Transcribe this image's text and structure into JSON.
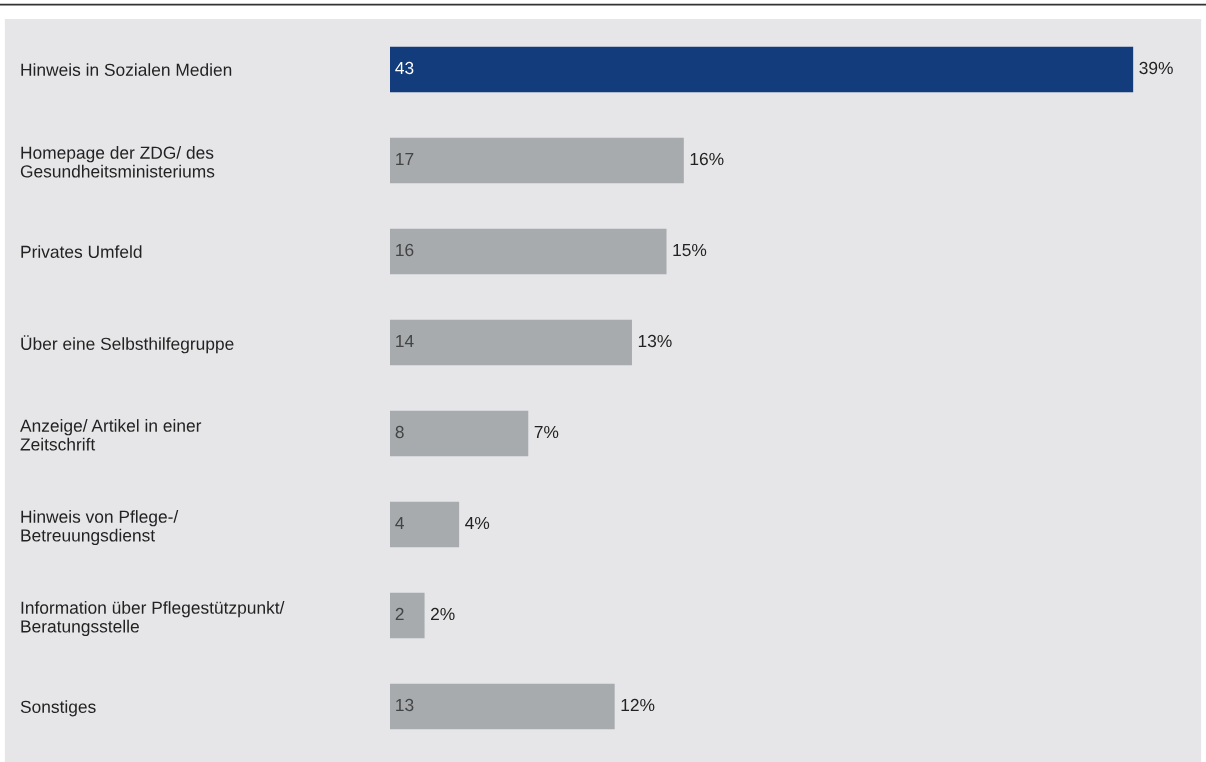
{
  "chart_data": {
    "type": "bar",
    "orientation": "horizontal",
    "categories": [
      "Hinweis in Sozialen Medien",
      "Homepage der ZDG/ des\nGesundheitsministeriums",
      "Privates Umfeld",
      "Über eine Selbsthilfegruppe",
      "Anzeige/ Artikel in einer\nZeitschrift",
      "Hinweis von Pflege-/\nBetreuungsdienst",
      "Information über Pflegestützpunkt/\nBeratungsstelle",
      "Sonstiges"
    ],
    "values": [
      43,
      17,
      16,
      14,
      8,
      4,
      2,
      13
    ],
    "colors": [
      "#133c7d",
      "#a7abae",
      "#a7abae",
      "#a7abae",
      "#a7abae",
      "#a7abae",
      "#a7abae",
      "#a7abae"
    ],
    "data_labels": true,
    "annotations": [
      {
        "text": "39%",
        "x": 43,
        "y": "Hinweis in Sozialen Medien"
      },
      {
        "text": "16%",
        "x": 17,
        "y": "Homepage der ZDG/ des\nGesundheitsministeriums"
      },
      {
        "text": "15%",
        "x": 16,
        "y": "Privates Umfeld"
      },
      {
        "text": "13%",
        "x": 14,
        "y": "Über eine Selbsthilfegruppe"
      },
      {
        "text": "7%",
        "x": 8,
        "y": "Anzeige/ Artikel in einer\nZeitschrift"
      },
      {
        "text": "4%",
        "x": 4,
        "y": "Hinweis von Pflege-/\nBetreuungsdienst"
      },
      {
        "text": "2%",
        "x": 2,
        "y": "Information über Pflegestützpunkt/\nBeratungsstelle"
      },
      {
        "text": "12%",
        "x": 13,
        "y": "Sonstiges"
      }
    ],
    "grid": false,
    "legend": false
  }
}
